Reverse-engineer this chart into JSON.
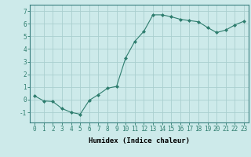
{
  "x": [
    0,
    1,
    2,
    3,
    4,
    5,
    6,
    7,
    8,
    9,
    10,
    11,
    12,
    13,
    14,
    15,
    16,
    17,
    18,
    19,
    20,
    21,
    22,
    23
  ],
  "y": [
    0.3,
    -0.1,
    -0.15,
    -0.7,
    -1.0,
    -1.15,
    -0.05,
    0.4,
    0.9,
    1.05,
    3.3,
    4.6,
    5.4,
    6.7,
    6.7,
    6.55,
    6.35,
    6.25,
    6.15,
    5.7,
    5.3,
    5.5,
    5.9,
    6.2
  ],
  "line_color": "#2e7d6e",
  "marker": "D",
  "marker_size": 2,
  "bg_color": "#cdeaea",
  "grid_color": "#aacfcf",
  "xlabel": "Humidex (Indice chaleur)",
  "ylim": [
    -1.8,
    7.5
  ],
  "xlim": [
    -0.5,
    23.5
  ],
  "yticks": [
    -1,
    0,
    1,
    2,
    3,
    4,
    5,
    6,
    7
  ],
  "xtick_labels": [
    "0",
    "1",
    "2",
    "3",
    "4",
    "5",
    "6",
    "7",
    "8",
    "9",
    "10",
    "11",
    "12",
    "13",
    "14",
    "15",
    "16",
    "17",
    "18",
    "19",
    "20",
    "21",
    "22",
    "23"
  ],
  "xlabel_fontsize": 6.5,
  "tick_fontsize": 5.5
}
